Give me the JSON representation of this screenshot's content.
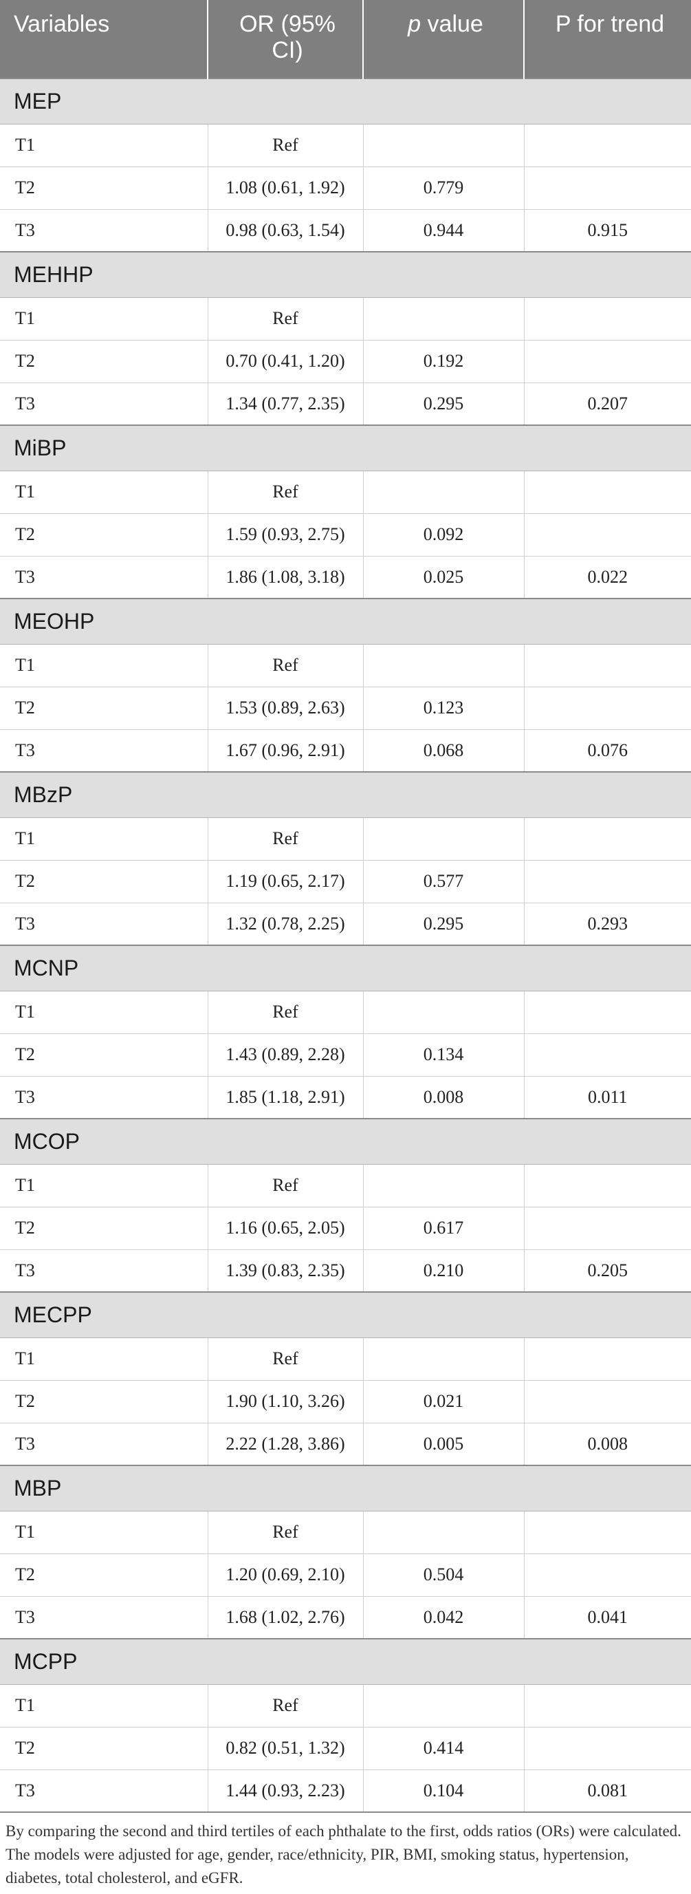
{
  "table": {
    "headers": {
      "variables": "Variables",
      "or_ci": "OR (95% CI)",
      "p_value_italic": "p",
      "p_value_rest": " value",
      "p_trend": "P for trend"
    },
    "groups": [
      {
        "name": "MEP",
        "rows": [
          {
            "tertile": "T1",
            "or": "Ref",
            "p": "",
            "trend": ""
          },
          {
            "tertile": "T2",
            "or": "1.08 (0.61, 1.92)",
            "p": "0.779",
            "trend": ""
          },
          {
            "tertile": "T3",
            "or": "0.98 (0.63, 1.54)",
            "p": "0.944",
            "trend": "0.915"
          }
        ]
      },
      {
        "name": "MEHHP",
        "rows": [
          {
            "tertile": "T1",
            "or": "Ref",
            "p": "",
            "trend": ""
          },
          {
            "tertile": "T2",
            "or": "0.70 (0.41, 1.20)",
            "p": "0.192",
            "trend": ""
          },
          {
            "tertile": "T3",
            "or": "1.34 (0.77, 2.35)",
            "p": "0.295",
            "trend": "0.207"
          }
        ]
      },
      {
        "name": "MiBP",
        "rows": [
          {
            "tertile": "T1",
            "or": "Ref",
            "p": "",
            "trend": ""
          },
          {
            "tertile": "T2",
            "or": "1.59 (0.93, 2.75)",
            "p": "0.092",
            "trend": ""
          },
          {
            "tertile": "T3",
            "or": "1.86 (1.08, 3.18)",
            "p": "0.025",
            "trend": "0.022"
          }
        ]
      },
      {
        "name": "MEOHP",
        "rows": [
          {
            "tertile": "T1",
            "or": "Ref",
            "p": "",
            "trend": ""
          },
          {
            "tertile": "T2",
            "or": "1.53 (0.89, 2.63)",
            "p": "0.123",
            "trend": ""
          },
          {
            "tertile": "T3",
            "or": "1.67 (0.96, 2.91)",
            "p": "0.068",
            "trend": "0.076"
          }
        ]
      },
      {
        "name": "MBzP",
        "rows": [
          {
            "tertile": "T1",
            "or": "Ref",
            "p": "",
            "trend": ""
          },
          {
            "tertile": "T2",
            "or": "1.19 (0.65, 2.17)",
            "p": "0.577",
            "trend": ""
          },
          {
            "tertile": "T3",
            "or": "1.32 (0.78, 2.25)",
            "p": "0.295",
            "trend": "0.293"
          }
        ]
      },
      {
        "name": "MCNP",
        "rows": [
          {
            "tertile": "T1",
            "or": "Ref",
            "p": "",
            "trend": ""
          },
          {
            "tertile": "T2",
            "or": "1.43 (0.89, 2.28)",
            "p": "0.134",
            "trend": ""
          },
          {
            "tertile": "T3",
            "or": "1.85 (1.18, 2.91)",
            "p": "0.008",
            "trend": "0.011"
          }
        ]
      },
      {
        "name": "MCOP",
        "rows": [
          {
            "tertile": "T1",
            "or": "Ref",
            "p": "",
            "trend": ""
          },
          {
            "tertile": "T2",
            "or": "1.16 (0.65, 2.05)",
            "p": "0.617",
            "trend": ""
          },
          {
            "tertile": "T3",
            "or": "1.39 (0.83, 2.35)",
            "p": "0.210",
            "trend": "0.205"
          }
        ]
      },
      {
        "name": "MECPP",
        "rows": [
          {
            "tertile": "T1",
            "or": "Ref",
            "p": "",
            "trend": ""
          },
          {
            "tertile": "T2",
            "or": "1.90 (1.10, 3.26)",
            "p": "0.021",
            "trend": ""
          },
          {
            "tertile": "T3",
            "or": "2.22 (1.28, 3.86)",
            "p": "0.005",
            "trend": "0.008"
          }
        ]
      },
      {
        "name": "MBP",
        "rows": [
          {
            "tertile": "T1",
            "or": "Ref",
            "p": "",
            "trend": ""
          },
          {
            "tertile": "T2",
            "or": "1.20 (0.69, 2.10)",
            "p": "0.504",
            "trend": ""
          },
          {
            "tertile": "T3",
            "or": "1.68 (1.02, 2.76)",
            "p": "0.042",
            "trend": "0.041"
          }
        ]
      },
      {
        "name": "MCPP",
        "rows": [
          {
            "tertile": "T1",
            "or": "Ref",
            "p": "",
            "trend": ""
          },
          {
            "tertile": "T2",
            "or": "0.82 (0.51, 1.32)",
            "p": "0.414",
            "trend": ""
          },
          {
            "tertile": "T3",
            "or": "1.44 (0.93, 2.23)",
            "p": "0.104",
            "trend": "0.081"
          }
        ]
      }
    ]
  },
  "footnote": "By comparing the second and third tertiles of each phthalate to the first, odds ratios (ORs) were calculated. The models were adjusted for age, gender, race/ethnicity, PIR, BMI, smoking status, hypertension, diabetes, total cholesterol, and eGFR."
}
